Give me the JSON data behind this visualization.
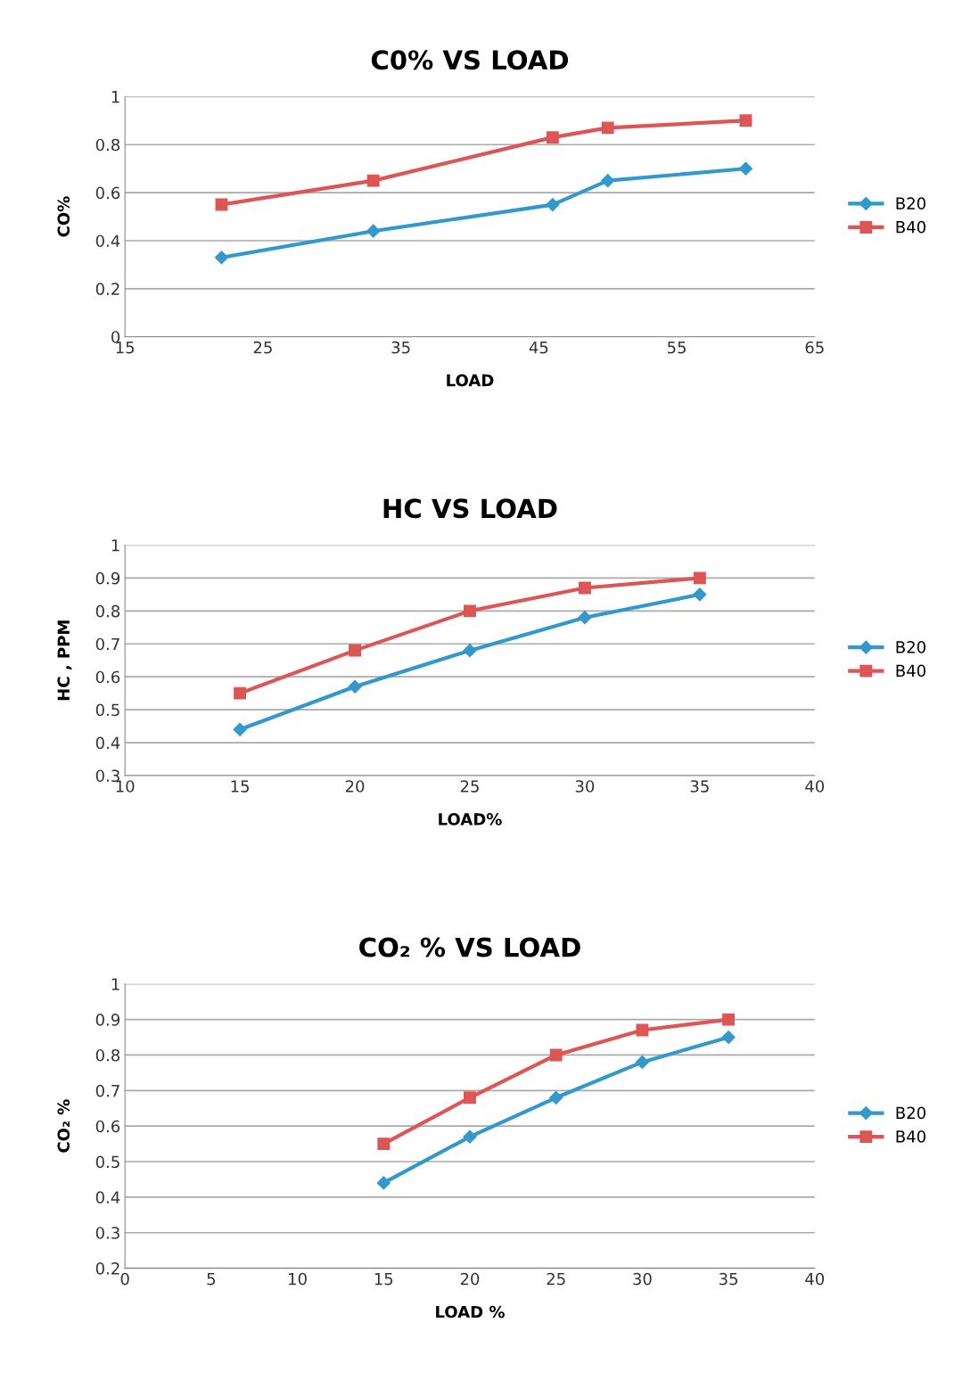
{
  "chart_data": [
    {
      "type": "line",
      "title": "C0% VS LOAD",
      "xlabel": "LOAD",
      "ylabel": "CO%",
      "xlim": [
        15,
        65
      ],
      "xticks": [
        15,
        25,
        35,
        45,
        55,
        65
      ],
      "ylim": [
        0,
        1
      ],
      "yticks": [
        0,
        0.2,
        0.4,
        0.6,
        0.8,
        1
      ],
      "grid": "y",
      "legend": "right",
      "x": [
        22,
        33,
        46,
        50,
        60
      ],
      "series": [
        {
          "name": "B20",
          "color": "#3399cc",
          "marker": "diamond",
          "values": [
            0.33,
            0.44,
            0.55,
            0.65,
            0.7
          ]
        },
        {
          "name": "B40",
          "color": "#dd5555",
          "marker": "square",
          "values": [
            0.55,
            0.65,
            0.83,
            0.87,
            0.9
          ]
        }
      ]
    },
    {
      "type": "line",
      "title": "HC VS LOAD",
      "xlabel": "LOAD%",
      "ylabel": "HC , PPM",
      "xlim": [
        10,
        40
      ],
      "xticks": [
        10,
        15,
        20,
        25,
        30,
        35,
        40
      ],
      "ylim": [
        0.3,
        1
      ],
      "yticks": [
        0.3,
        0.4,
        0.5,
        0.6,
        0.7,
        0.8,
        0.9,
        1
      ],
      "grid": "y",
      "legend": "right",
      "x": [
        15,
        20,
        25,
        30,
        35
      ],
      "series": [
        {
          "name": "B20",
          "color": "#3399cc",
          "marker": "diamond",
          "values": [
            0.44,
            0.57,
            0.68,
            0.78,
            0.85
          ]
        },
        {
          "name": "B40",
          "color": "#dd5555",
          "marker": "square",
          "values": [
            0.55,
            0.68,
            0.8,
            0.87,
            0.9
          ]
        }
      ]
    },
    {
      "type": "line",
      "title": "CO₂ % VS LOAD",
      "xlabel": "LOAD %",
      "ylabel": "CO₂ %",
      "xlim": [
        0,
        40
      ],
      "xticks": [
        0,
        5,
        10,
        15,
        20,
        25,
        30,
        35,
        40
      ],
      "ylim": [
        0.2,
        1
      ],
      "yticks": [
        0.2,
        0.3,
        0.4,
        0.5,
        0.6,
        0.7,
        0.8,
        0.9,
        1
      ],
      "grid": "y",
      "legend": "right",
      "x": [
        15,
        20,
        25,
        30,
        35
      ],
      "series": [
        {
          "name": "B20",
          "color": "#3399cc",
          "marker": "diamond",
          "values": [
            0.44,
            0.57,
            0.68,
            0.78,
            0.85
          ]
        },
        {
          "name": "B40",
          "color": "#dd5555",
          "marker": "square",
          "values": [
            0.55,
            0.68,
            0.8,
            0.87,
            0.9
          ]
        }
      ]
    }
  ]
}
